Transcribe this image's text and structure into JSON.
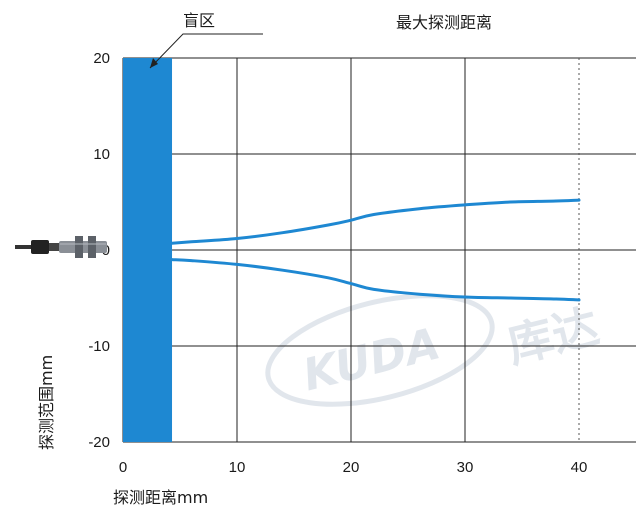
{
  "chart_data": {
    "type": "line",
    "title": "",
    "xlabel": "探测距离mm",
    "ylabel": "探测范围mm",
    "xlim": [
      0,
      45
    ],
    "ylim": [
      -20,
      20
    ],
    "x_ticks": [
      "0",
      "10",
      "20",
      "30",
      "40"
    ],
    "y_ticks": [
      "20",
      "10",
      "0",
      "-10",
      "-20"
    ],
    "grid": true,
    "blind_zone": {
      "label": "盲区",
      "x_start": 0,
      "x_end": 4.3,
      "color": "#1e88d2"
    },
    "max_distance": {
      "label": "最大探测距离",
      "x": 40
    },
    "series": [
      {
        "x": [
          4.3,
          6,
          10,
          14,
          18,
          20,
          22,
          26,
          30,
          34,
          38,
          40
        ],
        "y": [
          0.7,
          0.85,
          1.2,
          1.8,
          2.6,
          3.1,
          3.7,
          4.3,
          4.7,
          5.0,
          5.1,
          5.2
        ]
      },
      {
        "x": [
          4.3,
          6,
          10,
          14,
          18,
          20,
          22,
          26,
          30,
          34,
          38,
          40
        ],
        "y": [
          -1.0,
          -1.1,
          -1.5,
          -2.1,
          -2.9,
          -3.5,
          -4.1,
          -4.6,
          -4.9,
          -5.0,
          -5.1,
          -5.2
        ]
      }
    ],
    "line_color": "#1e88d2"
  },
  "watermark": {
    "latin": "KUDA",
    "cjk": "库达"
  }
}
